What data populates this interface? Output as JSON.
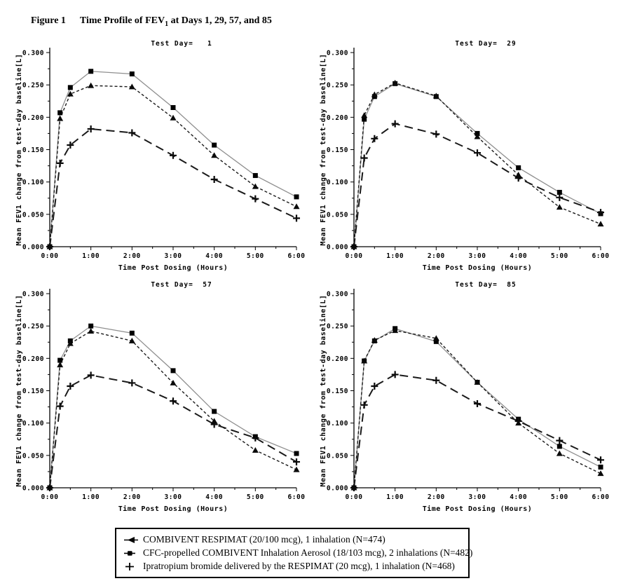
{
  "figure": {
    "label": "Figure 1",
    "title_prefix": "Time Profile of FEV",
    "title_sub": "1",
    "title_suffix": " at Days 1, 29, 57, and 85"
  },
  "legend": {
    "items": [
      {
        "marker": "triangle",
        "label": "COMBIVENT RESPIMAT (20/100 mcg), 1 inhalation (N=474)"
      },
      {
        "marker": "square",
        "label": "CFC-propelled COMBIVENT Inhalation Aerosol (18/103 mcg), 2 inhalations (N=482)"
      },
      {
        "marker": "plus",
        "label": "Ipratropium bromide delivered by the RESPIMAT (20 mcg), 1 inhalation (N=468)"
      }
    ]
  },
  "chart_data": [
    {
      "type": "line",
      "title": "Test Day=   1",
      "xlabel": "Time Post Dosing (Hours)",
      "ylabel": "Mean FEV1 change from test-day baseline[L]",
      "x_hours": [
        0,
        0.25,
        0.5,
        1,
        2,
        3,
        4,
        5,
        6
      ],
      "xtick_labels": [
        "0:00",
        "1:00",
        "2:00",
        "3:00",
        "4:00",
        "5:00",
        "6:00"
      ],
      "ytick_labels": [
        "0.000",
        "0.050",
        "0.100",
        "0.150",
        "0.200",
        "0.250",
        "0.300"
      ],
      "ylim": [
        0,
        0.3
      ],
      "xlim_hours": [
        0,
        6
      ],
      "grid": false,
      "series": [
        {
          "name": "COMBIVENT RESPIMAT (20/100 mcg), 1 inhalation (N=474)",
          "marker": "triangle",
          "line": "short-dash",
          "values": [
            0.0,
            0.198,
            0.236,
            0.249,
            0.247,
            0.199,
            0.141,
            0.093,
            0.062
          ]
        },
        {
          "name": "CFC-propelled COMBIVENT Inhalation Aerosol (18/103 mcg), 2 inhalations (N=482)",
          "marker": "square",
          "line": "solid",
          "values": [
            0.0,
            0.207,
            0.246,
            0.271,
            0.267,
            0.215,
            0.157,
            0.11,
            0.077
          ]
        },
        {
          "name": "Ipratropium bromide delivered by the RESPIMAT (20 mcg), 1 inhalation (N=468)",
          "marker": "plus",
          "line": "long-dash",
          "values": [
            0.0,
            0.129,
            0.157,
            0.182,
            0.176,
            0.141,
            0.104,
            0.074,
            0.044
          ]
        }
      ]
    },
    {
      "type": "line",
      "title": "Test Day=  29",
      "xlabel": "Time Post Dosing (Hours)",
      "ylabel": "Mean FEV1 change from test-day baseline[L]",
      "x_hours": [
        0,
        0.25,
        0.5,
        1,
        2,
        3,
        4,
        5,
        6
      ],
      "xtick_labels": [
        "0:00",
        "1:00",
        "2:00",
        "3:00",
        "4:00",
        "5:00",
        "6:00"
      ],
      "ytick_labels": [
        "0.000",
        "0.050",
        "0.100",
        "0.150",
        "0.200",
        "0.250",
        "0.300"
      ],
      "ylim": [
        0,
        0.3
      ],
      "xlim_hours": [
        0,
        6
      ],
      "grid": false,
      "series": [
        {
          "name": "COMBIVENT RESPIMAT (20/100 mcg), 1 inhalation (N=474)",
          "marker": "triangle",
          "line": "short-dash",
          "values": [
            0.0,
            0.203,
            0.235,
            0.253,
            0.233,
            0.17,
            0.111,
            0.061,
            0.035
          ]
        },
        {
          "name": "CFC-propelled COMBIVENT Inhalation Aerosol (18/103 mcg), 2 inhalations (N=482)",
          "marker": "square",
          "line": "solid",
          "values": [
            0.0,
            0.197,
            0.232,
            0.252,
            0.232,
            0.175,
            0.122,
            0.084,
            0.051
          ]
        },
        {
          "name": "Ipratropium bromide delivered by the RESPIMAT (20 mcg), 1 inhalation (N=468)",
          "marker": "plus",
          "line": "long-dash",
          "values": [
            0.0,
            0.137,
            0.167,
            0.19,
            0.174,
            0.145,
            0.106,
            0.076,
            0.053
          ]
        }
      ]
    },
    {
      "type": "line",
      "title": "Test Day=  57",
      "xlabel": "Time Post Dosing (Hours)",
      "ylabel": "Mean FEV1 change from test-day baseline[L]",
      "x_hours": [
        0,
        0.25,
        0.5,
        1,
        2,
        3,
        4,
        5,
        6
      ],
      "xtick_labels": [
        "0:00",
        "1:00",
        "2:00",
        "3:00",
        "4:00",
        "5:00",
        "6:00"
      ],
      "ytick_labels": [
        "0.000",
        "0.050",
        "0.100",
        "0.150",
        "0.200",
        "0.250",
        "0.300"
      ],
      "ylim": [
        0,
        0.3
      ],
      "xlim_hours": [
        0,
        6
      ],
      "grid": false,
      "series": [
        {
          "name": "COMBIVENT RESPIMAT (20/100 mcg), 1 inhalation (N=474)",
          "marker": "triangle",
          "line": "short-dash",
          "values": [
            0.0,
            0.19,
            0.223,
            0.242,
            0.227,
            0.162,
            0.103,
            0.058,
            0.028
          ]
        },
        {
          "name": "CFC-propelled COMBIVENT Inhalation Aerosol (18/103 mcg), 2 inhalations (N=482)",
          "marker": "square",
          "line": "solid",
          "values": [
            0.0,
            0.197,
            0.227,
            0.25,
            0.239,
            0.181,
            0.118,
            0.079,
            0.053
          ]
        },
        {
          "name": "Ipratropium bromide delivered by the RESPIMAT (20 mcg), 1 inhalation (N=468)",
          "marker": "plus",
          "line": "long-dash",
          "values": [
            0.0,
            0.126,
            0.157,
            0.174,
            0.162,
            0.134,
            0.098,
            0.077,
            0.04
          ]
        }
      ]
    },
    {
      "type": "line",
      "title": "Test Day=  85",
      "xlabel": "Time Post Dosing (Hours)",
      "ylabel": "Mean FEV1 change from test-day baseline[L]",
      "x_hours": [
        0,
        0.25,
        0.5,
        1,
        2,
        3,
        4,
        5,
        6
      ],
      "xtick_labels": [
        "0:00",
        "1:00",
        "2:00",
        "3:00",
        "4:00",
        "5:00",
        "6:00"
      ],
      "ytick_labels": [
        "0.000",
        "0.050",
        "0.100",
        "0.150",
        "0.200",
        "0.250",
        "0.300"
      ],
      "ylim": [
        0,
        0.3
      ],
      "xlim_hours": [
        0,
        6
      ],
      "grid": false,
      "series": [
        {
          "name": "COMBIVENT RESPIMAT (20/100 mcg), 1 inhalation (N=474)",
          "marker": "triangle",
          "line": "short-dash",
          "values": [
            0.0,
            0.196,
            0.228,
            0.243,
            0.231,
            0.163,
            0.1,
            0.053,
            0.022
          ]
        },
        {
          "name": "CFC-propelled COMBIVENT Inhalation Aerosol (18/103 mcg), 2 inhalations (N=482)",
          "marker": "square",
          "line": "solid",
          "values": [
            0.0,
            0.196,
            0.227,
            0.246,
            0.226,
            0.163,
            0.106,
            0.064,
            0.032
          ]
        },
        {
          "name": "Ipratropium bromide delivered by the RESPIMAT (20 mcg), 1 inhalation (N=468)",
          "marker": "plus",
          "line": "long-dash",
          "values": [
            0.0,
            0.128,
            0.157,
            0.175,
            0.166,
            0.13,
            0.103,
            0.073,
            0.043
          ]
        }
      ]
    }
  ],
  "colors": {
    "foreground": "#000000",
    "solid_line": "#8f8f8f",
    "dash_line": "#1a1a1a",
    "background": "#ffffff"
  }
}
